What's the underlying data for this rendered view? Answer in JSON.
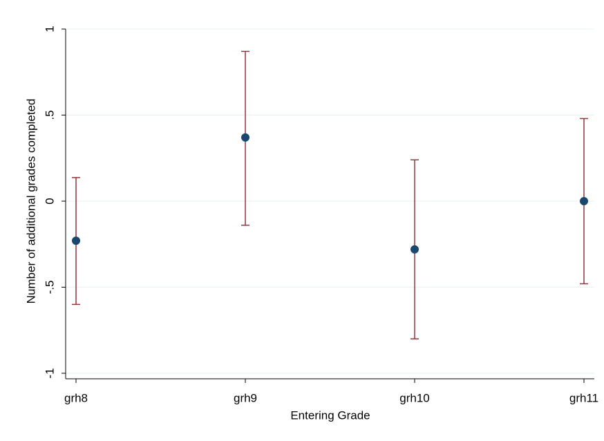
{
  "chart_data": {
    "type": "errorbar",
    "x_label": "Entering Grade",
    "y_label": "Number of additional grades completed",
    "categories": [
      "grh8",
      "grh9",
      "grh10",
      "grh11"
    ],
    "values": [
      -0.23,
      0.37,
      -0.28,
      0.0
    ],
    "ci_lower": [
      -0.6,
      -0.14,
      -0.8,
      -0.48
    ],
    "ci_upper": [
      0.137,
      0.87,
      0.24,
      0.48
    ],
    "point_color": "#1a476f",
    "errorbar_color": "#90353b",
    "ylim": [
      -1,
      1
    ],
    "yticks": [
      -1,
      {
        "value": -0.5,
        "label": "-.5"
      },
      0,
      {
        "value": 0.5,
        "label": ".5"
      },
      1
    ],
    "grid": true
  }
}
